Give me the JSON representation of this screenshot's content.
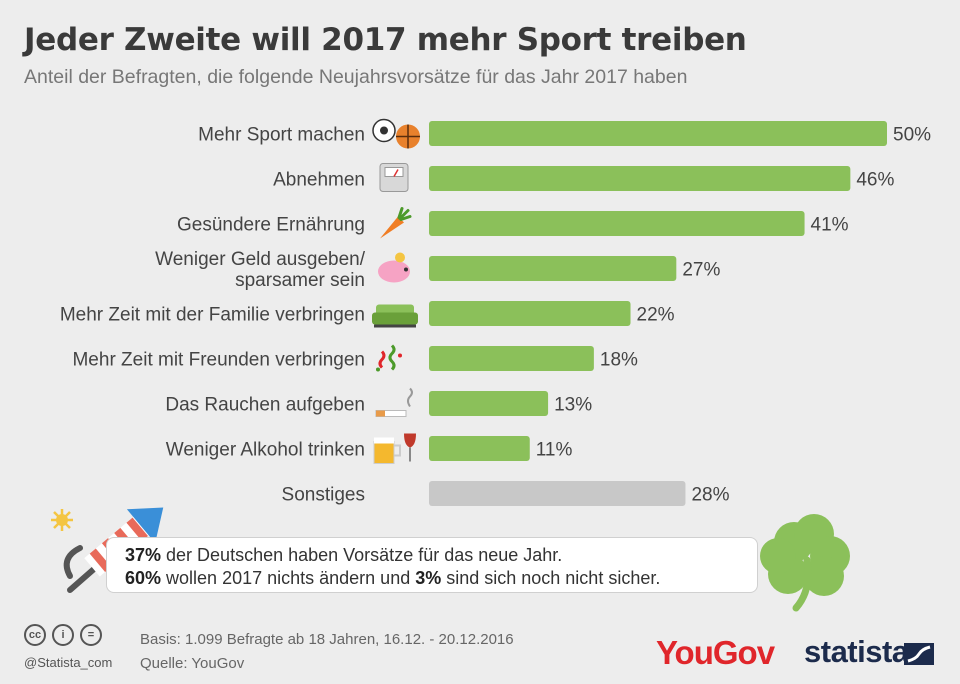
{
  "title": "Jeder Zweite will 2017 mehr Sport treiben",
  "subtitle": "Anteil der Befragten, die folgende Neujahrsvorsätze für das Jahr 2017 haben",
  "chart_data": {
    "type": "bar",
    "orientation": "horizontal",
    "categories": [
      [
        "Mehr Sport machen"
      ],
      [
        "Abnehmen"
      ],
      [
        "Gesündere Ernährung"
      ],
      [
        "Weniger Geld ausgeben/",
        "sparsamer sein"
      ],
      [
        "Mehr Zeit mit der Familie verbringen"
      ],
      [
        "Mehr Zeit mit Freunden verbringen"
      ],
      [
        "Das Rauchen aufgeben"
      ],
      [
        "Weniger Alkohol trinken"
      ],
      [
        "Sonstiges"
      ]
    ],
    "values": [
      50,
      46,
      41,
      27,
      22,
      18,
      13,
      11,
      28
    ],
    "value_labels": [
      "50%",
      "46%",
      "41%",
      "27%",
      "22%",
      "18%",
      "13%",
      "11%",
      "28%"
    ],
    "icons": [
      "sports-balls-icon",
      "scale-icon",
      "carrot-icon",
      "piggy-bank-icon",
      "sofa-icon",
      "confetti-icon",
      "cigarette-icon",
      "beer-wine-icon",
      ""
    ],
    "colors": [
      "#8bc05a",
      "#8bc05a",
      "#8bc05a",
      "#8bc05a",
      "#8bc05a",
      "#8bc05a",
      "#8bc05a",
      "#8bc05a",
      "#c8c8c8"
    ],
    "xlim": [
      0,
      50
    ],
    "grid": false,
    "legend": "none"
  },
  "note": {
    "line1_bold": "37%",
    "line1_text": " der Deutschen haben Vorsätze für das neue Jahr.",
    "line2_bold_a": "60%",
    "line2_text_a": " wollen 2017 nichts ändern und ",
    "line2_bold_b": "3%",
    "line2_text_b": " sind sich noch nicht sicher."
  },
  "footer": {
    "basis": "Basis: 1.099 Befragte ab 18 Jahren, 16.12. - 20.12.2016",
    "source": "Quelle: YouGov",
    "handle": "@Statista_com",
    "cc_icons": [
      "cc",
      "i",
      "="
    ],
    "brand_yougov": "YouGov",
    "brand_statista": "statista"
  },
  "decorations": [
    "firework-rocket-icon",
    "four-leaf-clover-icon"
  ]
}
